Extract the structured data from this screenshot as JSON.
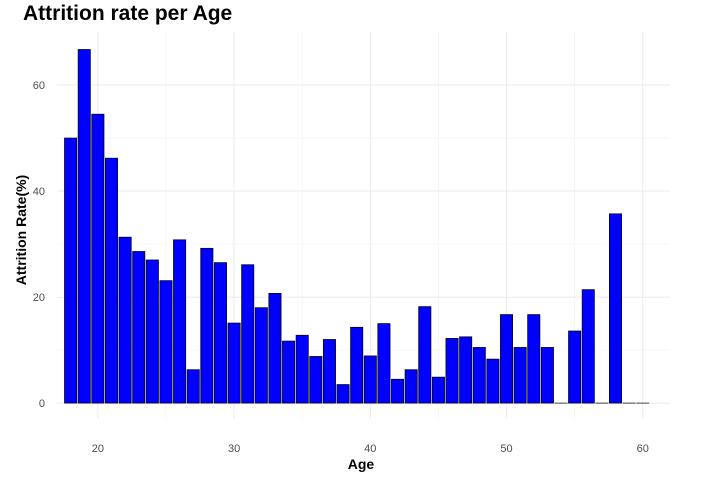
{
  "chart_data": {
    "type": "bar",
    "title": "Attrition rate per Age",
    "xlabel": "Age",
    "ylabel": "Attrition Rate(%)",
    "bar_color": "#0000ff",
    "bar_border": "#000000",
    "grid": true,
    "xlim": [
      17,
      62
    ],
    "ylim": [
      -3,
      70
    ],
    "xticks": [
      20,
      30,
      40,
      50,
      60
    ],
    "yticks": [
      0,
      20,
      40,
      60
    ],
    "x": [
      18,
      19,
      20,
      21,
      22,
      23,
      24,
      25,
      26,
      27,
      28,
      29,
      30,
      31,
      32,
      33,
      34,
      35,
      36,
      37,
      38,
      39,
      40,
      41,
      42,
      43,
      44,
      45,
      46,
      47,
      48,
      49,
      50,
      51,
      52,
      53,
      54,
      55,
      56,
      57,
      58,
      59,
      60
    ],
    "values": [
      50.0,
      66.7,
      54.5,
      46.2,
      31.3,
      28.6,
      27.0,
      23.1,
      30.8,
      6.3,
      29.2,
      26.5,
      15.1,
      26.1,
      18.0,
      20.7,
      11.7,
      12.8,
      8.8,
      12.0,
      3.5,
      14.3,
      8.9,
      15.0,
      4.5,
      6.3,
      18.2,
      4.9,
      12.2,
      12.5,
      10.5,
      8.3,
      16.7,
      10.5,
      16.7,
      10.5,
      0,
      13.6,
      21.4,
      0,
      35.7,
      0,
      0
    ]
  }
}
